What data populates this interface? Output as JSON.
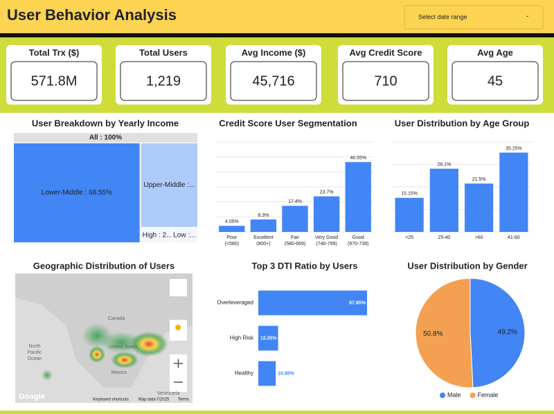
{
  "header": {
    "title": "User Behavior Analysis",
    "date_picker": "Select date range",
    "date_picker_icon": "-"
  },
  "kpis": [
    {
      "label": "Total Trx ($)",
      "value": "571.8M"
    },
    {
      "label": "Total Users",
      "value": "1,219"
    },
    {
      "label": "Avg Income ($)",
      "value": "45,716"
    },
    {
      "label": "Avg Credit Score",
      "value": "710"
    },
    {
      "label": "Avg Age",
      "value": "45"
    }
  ],
  "chart_data": [
    {
      "type": "treemap",
      "title": "User Breakdown by Yearly Income",
      "root_label": "All : 100%",
      "categories": [
        "Lower-Middle",
        "Upper-Middle",
        "High",
        "Low"
      ],
      "values": [
        68.55,
        26.6,
        2.6,
        2.25
      ],
      "value_labels": [
        "Lower-Middle : 68.55%",
        "Upper-Middle :...",
        "High : 2....",
        "Low :..."
      ],
      "colors": [
        "#4285f4",
        "#aecbfa",
        "#f3f6fd",
        "#f3f6fd"
      ]
    },
    {
      "type": "bar",
      "title": "Credit Score User Segmentation",
      "categories": [
        [
          "Poor",
          "(<580)"
        ],
        [
          "Excellent",
          "(800+)"
        ],
        [
          "Fair",
          "(580-669)"
        ],
        [
          "Very Good",
          "(740-799)"
        ],
        [
          "Good",
          "(670-739)"
        ]
      ],
      "values": [
        4.05,
        8.3,
        17.4,
        23.7,
        46.55
      ],
      "value_labels": [
        "4.05%",
        "8.3%",
        "17.4%",
        "23.7%",
        "46.55%"
      ],
      "color": "#4285f4",
      "ylim": [
        0,
        60
      ],
      "ygrid": [
        0,
        10,
        20,
        30,
        40,
        50,
        60
      ]
    },
    {
      "type": "bar",
      "title": "User Distribution by Age Group",
      "categories": [
        [
          "<25"
        ],
        [
          "25-40"
        ],
        [
          ">60"
        ],
        [
          "41-60"
        ]
      ],
      "values": [
        15.15,
        28.1,
        21.5,
        35.25
      ],
      "value_labels": [
        "15.15%",
        "28.1%",
        "21.5%",
        "35.25%"
      ],
      "color": "#4285f4",
      "ylim": [
        0,
        40
      ],
      "ygrid": [
        0,
        10,
        20,
        30,
        40
      ]
    },
    {
      "type": "map",
      "title": "Geographic Distribution of Users",
      "labels": [
        "Canada",
        "United States",
        "Mexico",
        "North",
        "Pacific",
        "Ocean",
        "Venezuela",
        "Google",
        "Keyboard shortcuts",
        "Map data ©2025",
        "Terms"
      ]
    },
    {
      "type": "hbar",
      "title": "Top 3 DTI Ratio by Users",
      "categories": [
        "Overleveraged",
        "High Risk",
        "Healthy"
      ],
      "values": [
        67.85,
        12.35,
        10.85
      ],
      "value_labels": [
        "67.85%",
        "12.35%",
        "10.85%"
      ],
      "color": "#4285f4",
      "xlim": [
        0,
        70
      ]
    },
    {
      "type": "pie",
      "title": "User Distribution by Gender",
      "categories": [
        "Male",
        "Female"
      ],
      "values": [
        49.2,
        50.8
      ],
      "value_labels": [
        "49.2%",
        "50.8%"
      ],
      "colors": [
        "#4285f4",
        "#f4a052"
      ],
      "legend": "bottom"
    }
  ]
}
